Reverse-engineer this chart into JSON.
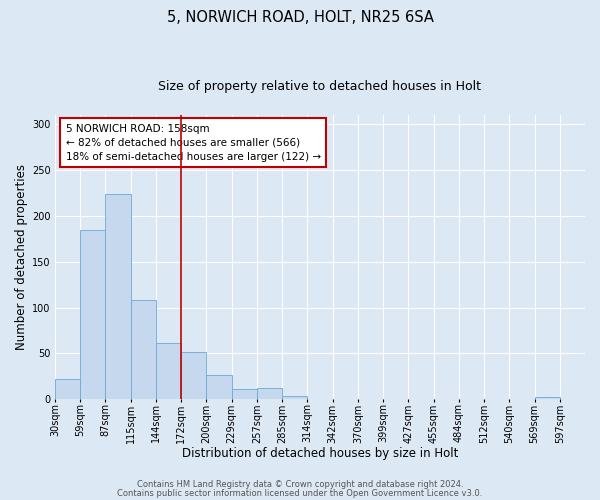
{
  "title": "5, NORWICH ROAD, HOLT, NR25 6SA",
  "subtitle": "Size of property relative to detached houses in Holt",
  "xlabel": "Distribution of detached houses by size in Holt",
  "ylabel": "Number of detached properties",
  "bar_values": [
    22,
    184,
    224,
    108,
    61,
    51,
    26,
    11,
    12,
    3,
    0,
    0,
    0,
    0,
    0,
    0,
    0,
    0,
    0,
    2,
    0
  ],
  "bin_labels": [
    "30sqm",
    "59sqm",
    "87sqm",
    "115sqm",
    "144sqm",
    "172sqm",
    "200sqm",
    "229sqm",
    "257sqm",
    "285sqm",
    "314sqm",
    "342sqm",
    "370sqm",
    "399sqm",
    "427sqm",
    "455sqm",
    "484sqm",
    "512sqm",
    "540sqm",
    "569sqm",
    "597sqm"
  ],
  "bar_color": "#c5d8ee",
  "bar_edge_color": "#6aaad4",
  "bar_width": 1.0,
  "vline_x": 5.0,
  "vline_color": "#c00000",
  "annotation_box_text": "5 NORWICH ROAD: 158sqm\n← 82% of detached houses are smaller (566)\n18% of semi-detached houses are larger (122) →",
  "annotation_box_color": "#c00000",
  "ylim": [
    0,
    310
  ],
  "yticks": [
    0,
    50,
    100,
    150,
    200,
    250,
    300
  ],
  "footer_line1": "Contains HM Land Registry data © Crown copyright and database right 2024.",
  "footer_line2": "Contains public sector information licensed under the Open Government Licence v3.0.",
  "bg_color": "#dde8f5",
  "plot_bg_color": "#dde8f5",
  "title_fontsize": 10.5,
  "subtitle_fontsize": 9,
  "axis_label_fontsize": 8.5,
  "tick_fontsize": 7,
  "annotation_fontsize": 7.5,
  "footer_fontsize": 6
}
